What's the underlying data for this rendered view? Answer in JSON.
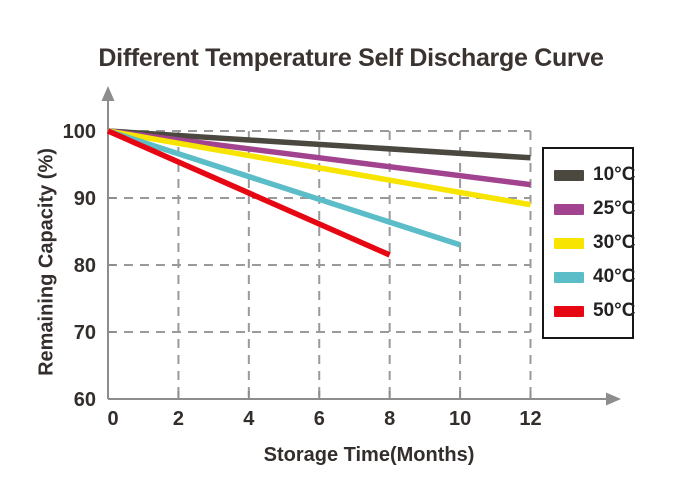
{
  "chart_data": {
    "type": "line",
    "title": "Different Temperature Self Discharge Curve",
    "xlabel": "Storage Time(Months)",
    "ylabel": "Remaining Capacity (%)",
    "xlim": [
      0,
      12
    ],
    "ylim": [
      60,
      100
    ],
    "xticks": [
      0,
      2,
      4,
      6,
      8,
      10,
      12
    ],
    "yticks": [
      60,
      70,
      80,
      90,
      100
    ],
    "grid": "dashed",
    "legend_position": "right",
    "series": [
      {
        "name": "10°C",
        "color": "#4a483f",
        "x": [
          0,
          12
        ],
        "y": [
          100,
          96
        ]
      },
      {
        "name": "25°C",
        "color": "#a2438f",
        "x": [
          0,
          12
        ],
        "y": [
          100,
          92
        ]
      },
      {
        "name": "30°C",
        "color": "#f7e400",
        "x": [
          0,
          12
        ],
        "y": [
          100,
          89
        ]
      },
      {
        "name": "40°C",
        "color": "#5bbdc8",
        "x": [
          0,
          10
        ],
        "y": [
          100,
          83
        ]
      },
      {
        "name": "50°C",
        "color": "#e60712",
        "x": [
          0,
          8
        ],
        "y": [
          100,
          81.5
        ]
      }
    ]
  },
  "colors": {
    "title": "#3a3330",
    "axis": "#8d8d8d",
    "grid": "#9a9a9a",
    "tick_text": "#332e2b",
    "legend_border": "#161616",
    "background": "#ffffff"
  }
}
